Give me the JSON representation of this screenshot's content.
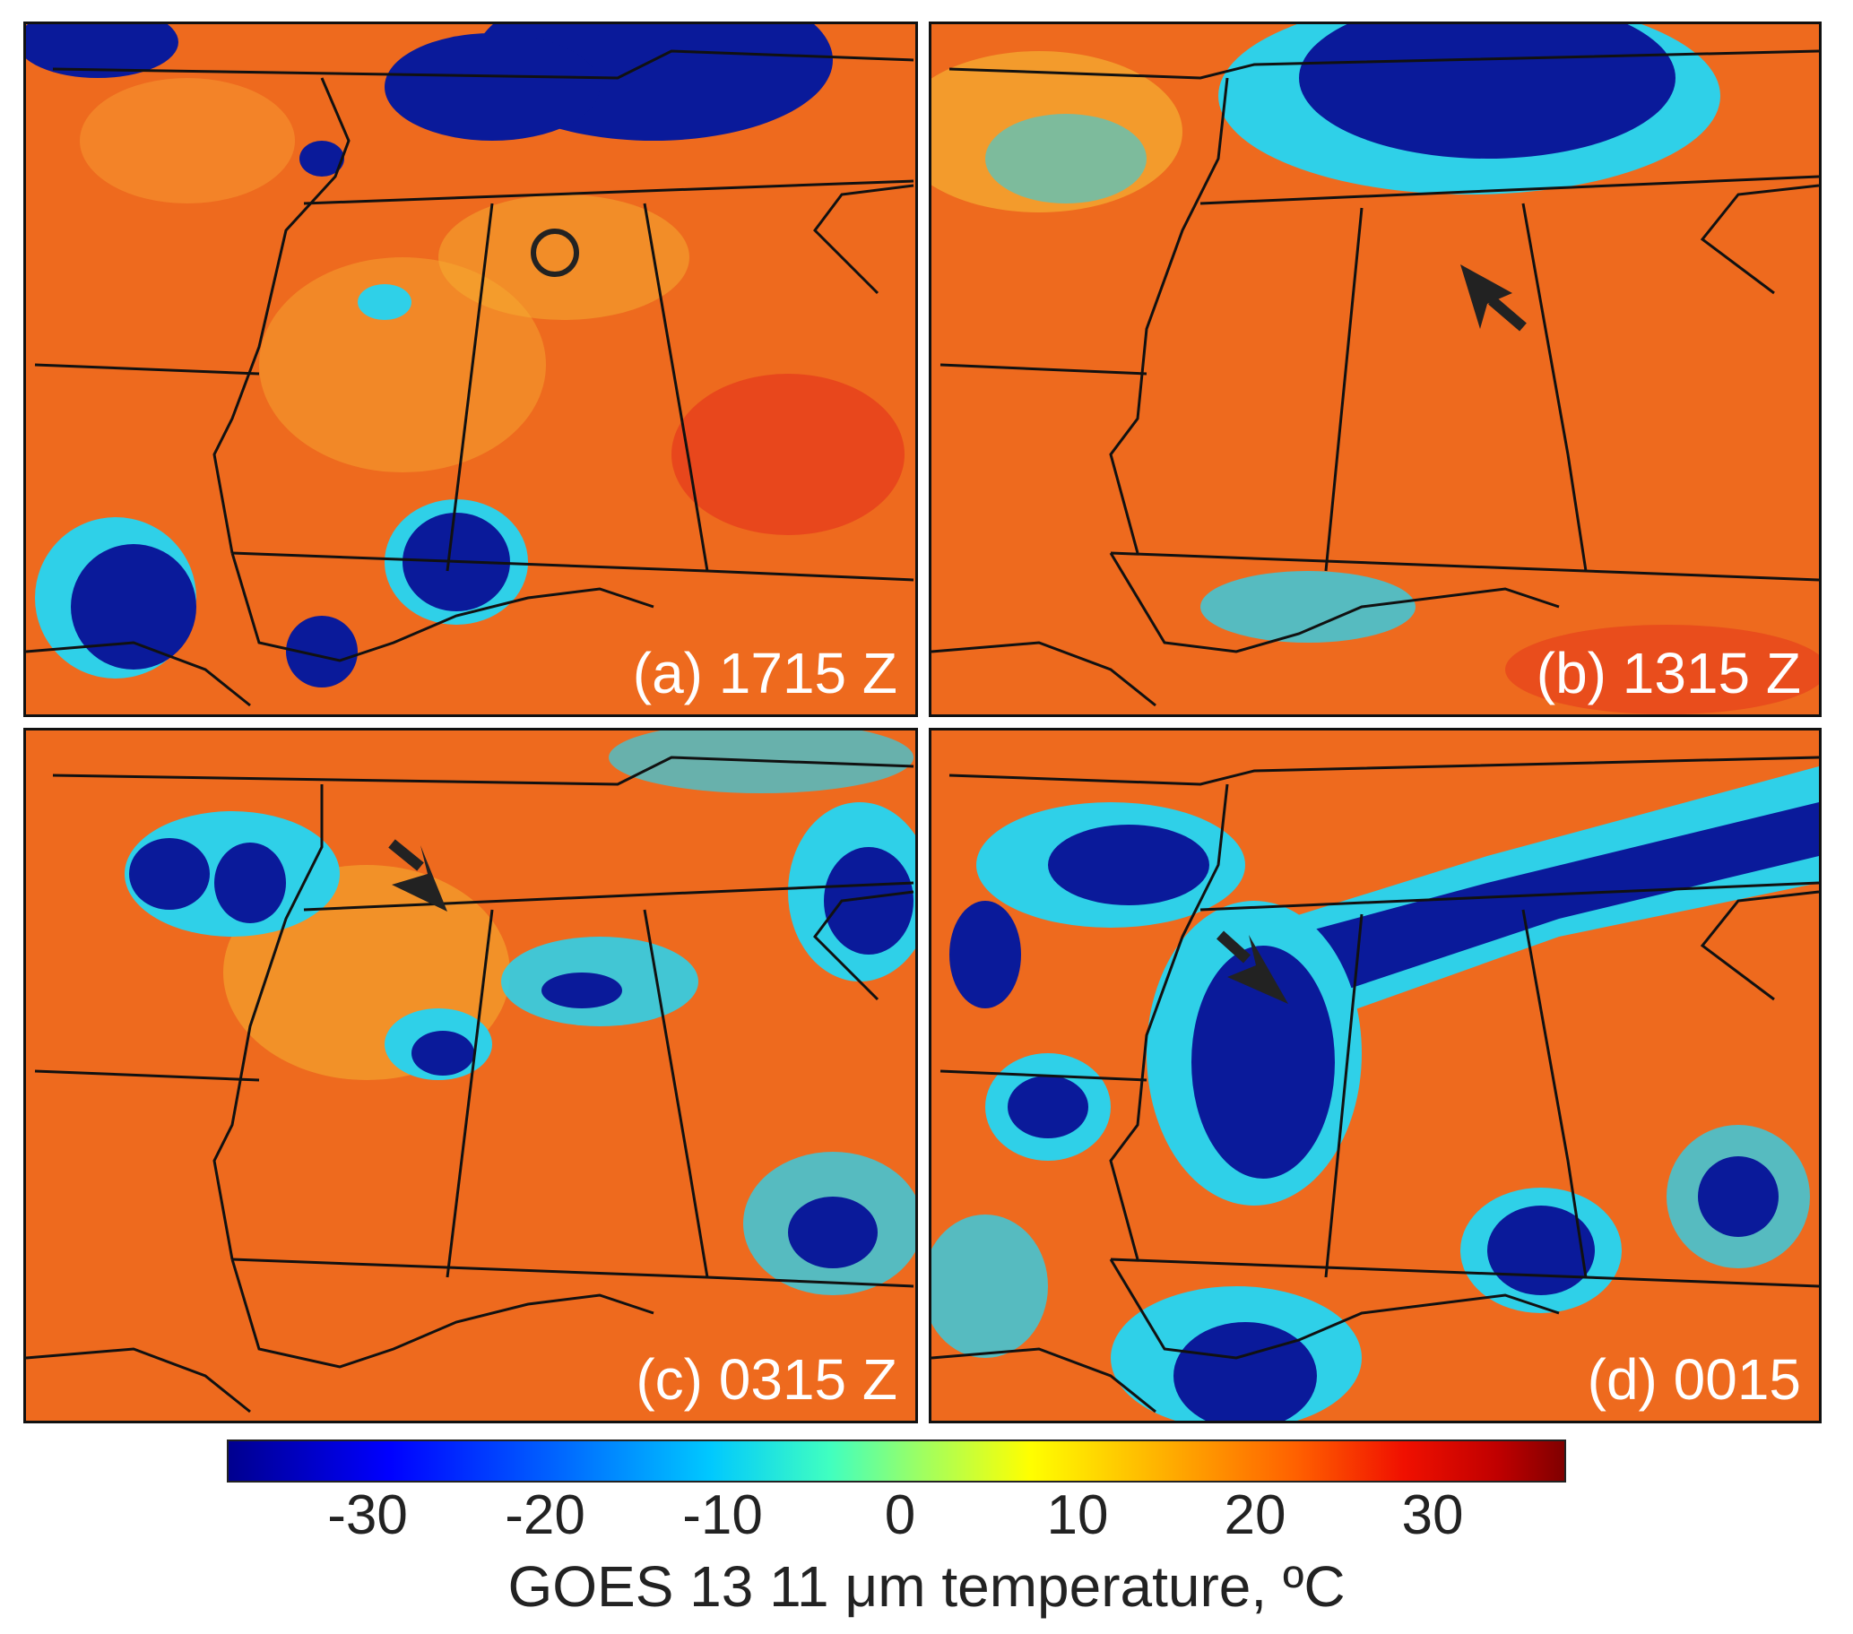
{
  "panels": [
    {
      "id": "a",
      "label": "(a) 1715 Z"
    },
    {
      "id": "b",
      "label": "(b) 1315 Z"
    },
    {
      "id": "c",
      "label": "(c) 0315 Z"
    },
    {
      "id": "d",
      "label": "(d) 0015"
    }
  ],
  "colorbar": {
    "ticks": [
      "-30",
      "-20",
      "-10",
      "0",
      "10",
      "20",
      "30"
    ],
    "title": "GOES 13 11 μm temperature, ºC",
    "colors": {
      "coldest": "#00008f",
      "cold": "#0000ff",
      "cool": "#00c8ff",
      "mild": "#ffff00",
      "warm": "#ff6000",
      "hottest": "#800000"
    }
  },
  "map_colors": {
    "background": "#ee6a1e",
    "cloud_deep": "#0a1a9a",
    "cloud_edge": "#2fd0e8",
    "cloud_light": "#f6c12c",
    "border": "#111111"
  },
  "annotations": {
    "a": "circle-marker",
    "b": "arrow-marker",
    "c": "arrow-marker",
    "d": "arrow-marker"
  }
}
